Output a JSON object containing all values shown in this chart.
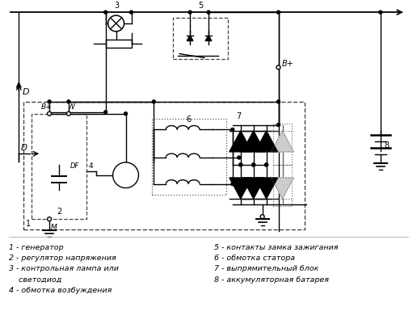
{
  "bg_color": "#ffffff",
  "line_color": "#000000",
  "fig_w": 5.16,
  "fig_h": 4.02,
  "dpi": 100,
  "legend_left": [
    "1 - генератор",
    "2 - регулятор напряжения",
    "3 - контрольная лампа или",
    "    светодиод",
    "4 - обмотка возбуждения"
  ],
  "legend_right": [
    "5 - контакты замка зажигания",
    "6 - обмотка статора",
    "7 - выпрямительный блок",
    "8 - аккумуляторная батарея"
  ]
}
